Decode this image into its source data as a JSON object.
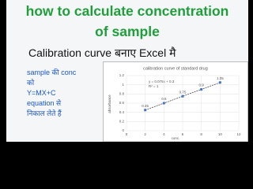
{
  "header": {
    "title_line1": "how to calculate concentration",
    "title_line2": "of sample",
    "subtitle": "Calibration curve बनाए Excel  मै"
  },
  "side_text": {
    "lines": [
      "sample की conc",
      "को",
      "Y=MX+C",
      "equation से",
      "निकाल लेते हैं"
    ]
  },
  "chart": {
    "type": "scatter",
    "title": "calibration curve of standard drug",
    "x_label": "conc.",
    "y_label": "absorbance",
    "equation": "y = 0.075x + 0.3",
    "r_squared": "R² = 1",
    "x": [
      2,
      4,
      6,
      8,
      10
    ],
    "values": [
      0.45,
      0.6,
      0.75,
      0.9,
      1.05
    ],
    "color": "#4472c4",
    "xlim": [
      0,
      12
    ],
    "xticks": [
      0,
      2,
      4,
      6,
      8,
      10,
      12
    ],
    "ylim": [
      0,
      1.2
    ],
    "yticks": [
      0,
      0.2,
      0.4,
      0.6,
      0.8,
      1,
      1.2
    ],
    "grid": true
  }
}
